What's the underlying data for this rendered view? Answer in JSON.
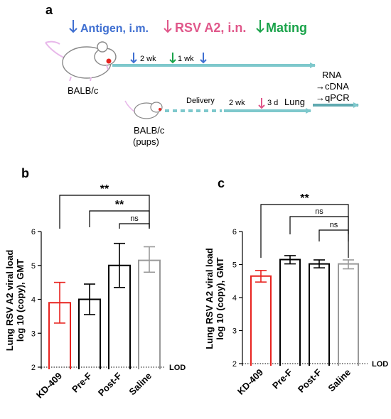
{
  "panel_labels": {
    "a": "a",
    "b": "b",
    "c": "c"
  },
  "schematic": {
    "legend": {
      "antigen": "Antigen, i.m.",
      "rsv": "RSV A2, i.n.",
      "mating": "Mating"
    },
    "adult_label": "BALB/c",
    "pups_label": [
      "BALB/c",
      "(pups)"
    ],
    "interval_2wk": "2 wk",
    "interval_1wk": "1 wk",
    "delivery": "Delivery",
    "pups_2wk": "2 wk",
    "pups_3d": "3 d",
    "lung": "Lung",
    "readout": [
      "RNA",
      "→cDNA",
      "→qPCR"
    ]
  },
  "colors": {
    "antigen": "#3f6fd1",
    "rsv": "#e0578a",
    "mating": "#1aa34a",
    "timeline": "#7ec8cc",
    "kd409": "#e8231f",
    "pref": "#000000",
    "postf": "#000000",
    "saline": "#999999"
  },
  "chart_data": [
    {
      "type": "bar",
      "panel": "b",
      "categories": [
        "KD-409",
        "Pre-F",
        "Post-F",
        "Saline"
      ],
      "values": [
        3.9,
        4.0,
        5.0,
        5.15
      ],
      "error_low": [
        3.3,
        3.55,
        4.35,
        4.8
      ],
      "error_high": [
        4.5,
        4.45,
        5.65,
        5.55
      ],
      "ylabel": [
        "Lung RSV A2 viral load",
        "log 10 (copy), GMT"
      ],
      "ylim": [
        2,
        6
      ],
      "yticks": [
        "2",
        "3",
        "4",
        "5",
        "6"
      ],
      "lod": {
        "value": 2,
        "label": "LOD"
      },
      "significance": [
        {
          "from": "KD-409",
          "to": "Saline",
          "label": "**"
        },
        {
          "from": "Pre-F",
          "to": "Saline",
          "label": "**"
        },
        {
          "from": "Post-F",
          "to": "Saline",
          "label": "ns"
        }
      ]
    },
    {
      "type": "bar",
      "panel": "c",
      "categories": [
        "KD-409",
        "Pre-F",
        "Post-F",
        "Saline"
      ],
      "values": [
        4.65,
        5.15,
        5.02,
        5.02
      ],
      "error_low": [
        4.47,
        5.02,
        4.9,
        4.87
      ],
      "error_high": [
        4.82,
        5.27,
        5.14,
        5.14
      ],
      "ylabel": [
        "Lung RSV A2 viral load",
        "log 10 (copy), GMT"
      ],
      "ylim": [
        2,
        6
      ],
      "yticks": [
        "2",
        "3",
        "4",
        "5",
        "6"
      ],
      "lod": {
        "value": 2,
        "label": "LOD"
      },
      "significance": [
        {
          "from": "KD-409",
          "to": "Saline",
          "label": "**"
        },
        {
          "from": "Pre-F",
          "to": "Saline",
          "label": "ns"
        },
        {
          "from": "Post-F",
          "to": "Saline",
          "label": "ns"
        }
      ]
    }
  ]
}
